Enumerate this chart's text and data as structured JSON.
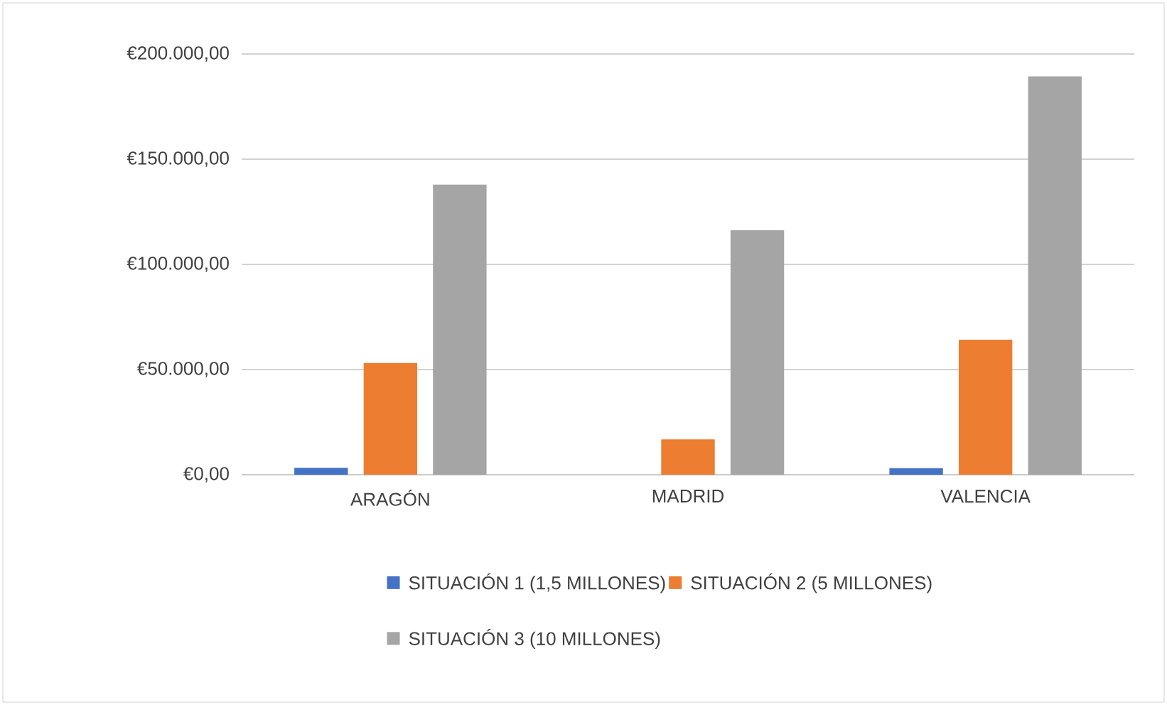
{
  "chart_data": {
    "type": "bar",
    "categories": [
      "ARAGÓN",
      "MADRID",
      "VALENCIA"
    ],
    "series": [
      {
        "name": "SITUACIÓN 1 (1,5 MILLONES)",
        "color": "#4472c4",
        "values": [
          3300,
          0,
          3100
        ]
      },
      {
        "name": "SITUACIÓN 2 (5 MILLONES)",
        "color": "#ed7d31",
        "values": [
          53100,
          16800,
          64200
        ]
      },
      {
        "name": "SITUACIÓN 3 (10 MILLONES)",
        "color": "#a5a5a5",
        "values": [
          137900,
          116200,
          189400
        ]
      }
    ],
    "ylim": [
      0,
      200000
    ],
    "yticks": [
      {
        "value": 0,
        "label": "€0,00"
      },
      {
        "value": 50000,
        "label": "€50.000,00"
      },
      {
        "value": 100000,
        "label": "€100.000,00"
      },
      {
        "value": 150000,
        "label": "€150.000,00"
      },
      {
        "value": 200000,
        "label": "€200.000,00"
      }
    ],
    "grid": true,
    "legend": "bottom"
  }
}
